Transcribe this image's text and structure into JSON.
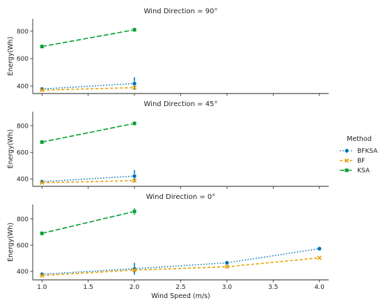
{
  "chart_data": {
    "type": "line",
    "xlabel": "Wind Speed (m/s)",
    "ylabel": "Energy(Wh)",
    "x_ticks": [
      "1.0",
      "1.5",
      "2.0",
      "2.5",
      "3.0",
      "3.5",
      "4.0"
    ],
    "xlim": [
      0.9,
      4.1
    ],
    "grid": false,
    "legend": {
      "title": "Method",
      "placement": "right",
      "entries": [
        {
          "name": "BFKSA",
          "color": "#0072B2",
          "marker": "circle",
          "dash": "dotted"
        },
        {
          "name": "BF",
          "color": "#E69F00",
          "marker": "x",
          "dash": "dashed"
        },
        {
          "name": "KSA",
          "color": "#009E30",
          "marker": "square",
          "dash": "longdash"
        }
      ]
    },
    "panels": [
      {
        "title": "Wind Direction = 90°",
        "ylim": [
          345,
          890
        ],
        "y_ticks": [
          400,
          600,
          800
        ],
        "series": [
          {
            "name": "BFKSA",
            "x": [
              1.0,
              2.0
            ],
            "y": [
              378,
              418
            ],
            "err": [
              6,
              45
            ]
          },
          {
            "name": "BF",
            "x": [
              1.0,
              2.0
            ],
            "y": [
              370,
              388
            ],
            "err": [
              4,
              6
            ]
          },
          {
            "name": "KSA",
            "x": [
              1.0,
              2.0
            ],
            "y": [
              688,
              810
            ],
            "err": [
              4,
              14
            ]
          }
        ]
      },
      {
        "title": "Wind Direction = 45°",
        "ylim": [
          345,
          905
        ],
        "y_ticks": [
          400,
          600,
          800
        ],
        "series": [
          {
            "name": "BFKSA",
            "x": [
              1.0,
              2.0
            ],
            "y": [
              380,
              422
            ],
            "err": [
              6,
              45
            ]
          },
          {
            "name": "BF",
            "x": [
              1.0,
              2.0
            ],
            "y": [
              372,
              388
            ],
            "err": [
              4,
              6
            ]
          },
          {
            "name": "KSA",
            "x": [
              1.0,
              2.0
            ],
            "y": [
              677,
              817
            ],
            "err": [
              4,
              14
            ]
          }
        ]
      },
      {
        "title": "Wind Direction = 0°",
        "ylim": [
          335,
          910
        ],
        "y_ticks": [
          400,
          600,
          800
        ],
        "series": [
          {
            "name": "BFKSA",
            "x": [
              1.0,
              2.0,
              3.0,
              4.0
            ],
            "y": [
              378,
              420,
              465,
              573
            ],
            "err": [
              6,
              45,
              8,
              10
            ]
          },
          {
            "name": "BF",
            "x": [
              1.0,
              2.0,
              3.0,
              4.0
            ],
            "y": [
              368,
              410,
              435,
              503
            ],
            "err": [
              4,
              8,
              6,
              6
            ]
          },
          {
            "name": "KSA",
            "x": [
              1.0,
              2.0
            ],
            "y": [
              690,
              857
            ],
            "err": [
              4,
              25
            ]
          }
        ]
      }
    ]
  }
}
